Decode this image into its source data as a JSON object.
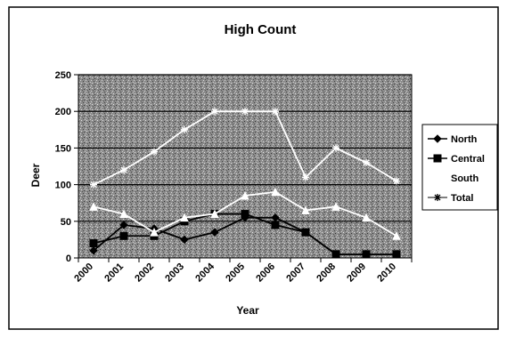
{
  "chart_data": {
    "type": "line",
    "title": "High Count",
    "xlabel": "Year",
    "ylabel": "Deer",
    "categories": [
      "2000",
      "2001",
      "2002",
      "2003",
      "2004",
      "2005",
      "2006",
      "2007",
      "2008",
      "2009",
      "2010"
    ],
    "ylim": [
      0,
      250
    ],
    "yticks": [
      0,
      50,
      100,
      150,
      200,
      250
    ],
    "grid": "horizontal",
    "legend_position": "right",
    "series": [
      {
        "name": "North",
        "marker": "diamond",
        "color": "#000000",
        "values": [
          10,
          45,
          40,
          25,
          35,
          55,
          55,
          35,
          5,
          5,
          5
        ]
      },
      {
        "name": "Central",
        "marker": "square",
        "color": "#000000",
        "values": [
          20,
          30,
          30,
          50,
          60,
          60,
          45,
          35,
          5,
          5,
          5
        ]
      },
      {
        "name": "South",
        "marker": "triangle",
        "color": "#ffffff",
        "values": [
          70,
          60,
          35,
          55,
          60,
          85,
          90,
          65,
          70,
          55,
          30
        ]
      },
      {
        "name": "Total",
        "marker": "star",
        "color": "#ffffff",
        "values": [
          100,
          120,
          145,
          175,
          200,
          200,
          200,
          110,
          150,
          130,
          105
        ]
      }
    ]
  }
}
